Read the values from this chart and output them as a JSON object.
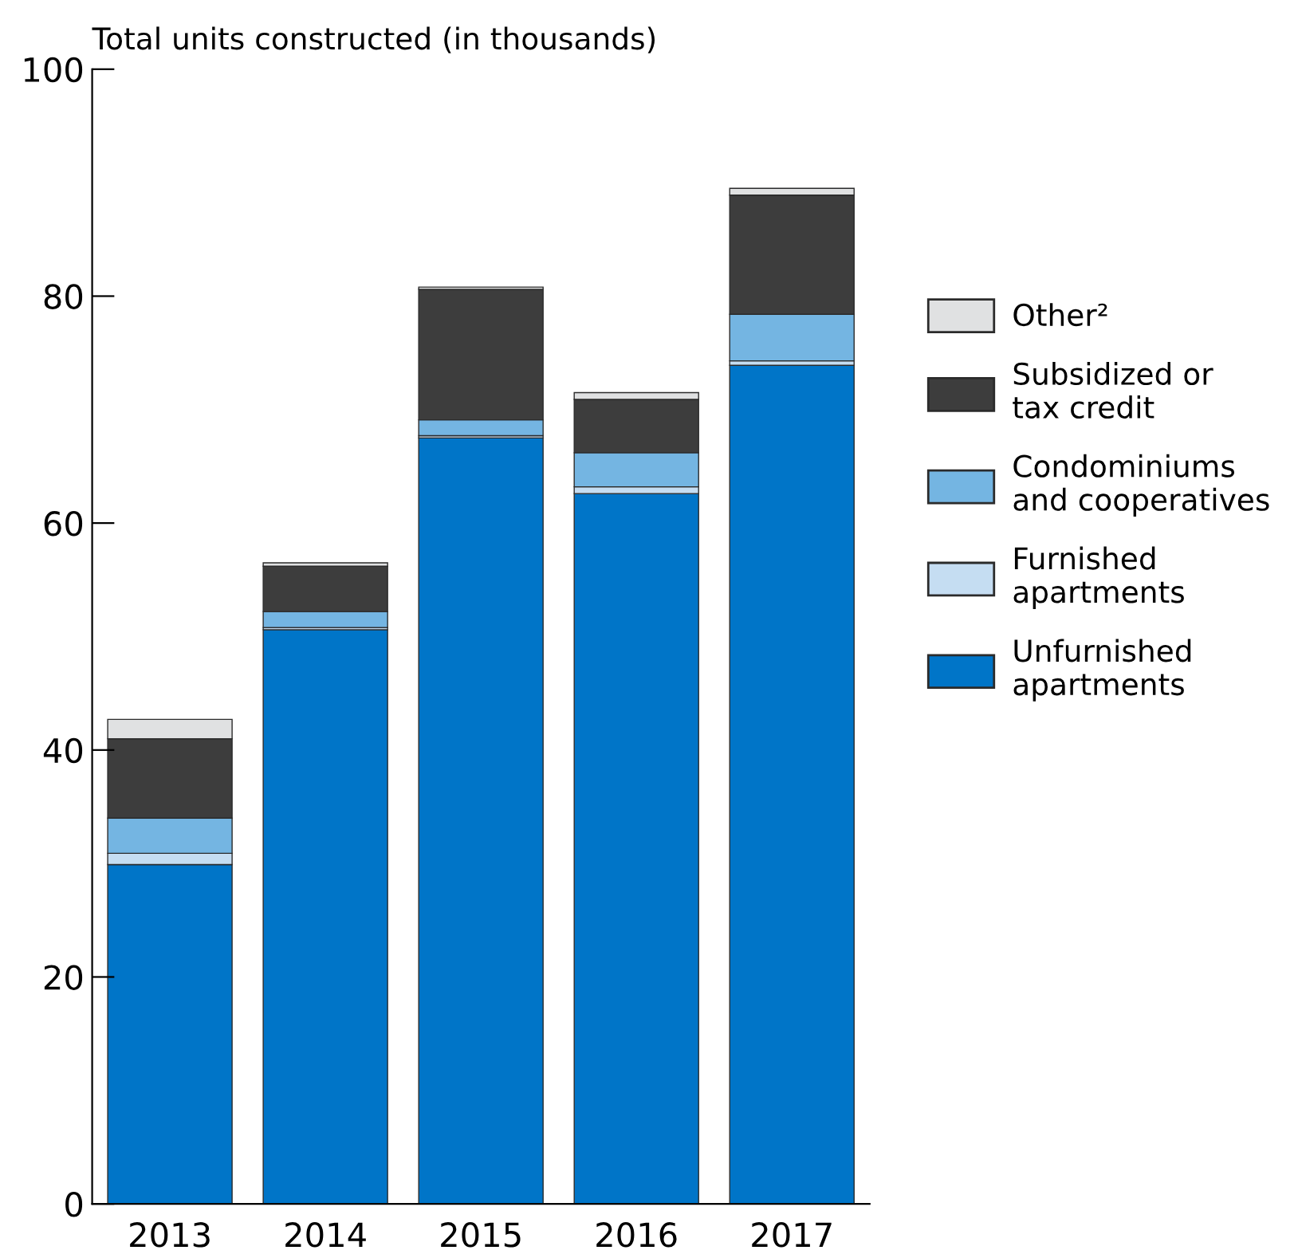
{
  "chart_data": {
    "type": "bar",
    "stacked": true,
    "ylabel": "Total units constructed (in thousands)",
    "categories": [
      "2013",
      "2014",
      "2015",
      "2016",
      "2017"
    ],
    "series": [
      {
        "name": "Unfurnished\napartments",
        "color": "#0075c8",
        "values": [
          29.9,
          50.6,
          67.5,
          62.6,
          73.9
        ]
      },
      {
        "name": "Furnished\napartments",
        "color": "#c5ddf2",
        "values": [
          1.0,
          0.2,
          0.2,
          0.6,
          0.4
        ]
      },
      {
        "name": "Condominiums\nand cooperatives",
        "color": "#74b5e2",
        "values": [
          3.1,
          1.4,
          1.4,
          3.0,
          4.1
        ]
      },
      {
        "name": "Subsidized or\ntax credit",
        "color": "#3d3d3d",
        "values": [
          7.0,
          4.0,
          11.5,
          4.7,
          10.5
        ]
      },
      {
        "name": "Other²",
        "color": "#e0e1e2",
        "values": [
          1.7,
          0.3,
          0.2,
          0.6,
          0.6
        ]
      }
    ],
    "ylim": [
      0,
      100
    ],
    "yticks": [
      0,
      20,
      40,
      60,
      80,
      100
    ],
    "grid": false,
    "legend": "right"
  }
}
